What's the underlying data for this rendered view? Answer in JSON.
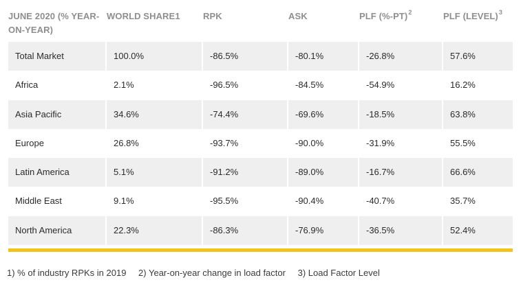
{
  "header": {
    "col0": "JUNE 2020 (% YEAR-ON-YEAR)",
    "col1": "WORLD SHARE1",
    "col2": "RPK",
    "col3": "ASK",
    "col4": "PLF (%-PT)",
    "col4_sup": "2",
    "col5": "PLF (LEVEL)",
    "col5_sup": "3"
  },
  "rows": [
    {
      "region": "Total Market",
      "share": "100.0%",
      "rpk": "-86.5%",
      "ask": "-80.1%",
      "plf_pt": "-26.8%",
      "plf_level": "57.6%"
    },
    {
      "region": "Africa",
      "share": "2.1%",
      "rpk": "-96.5%",
      "ask": "-84.5%",
      "plf_pt": "-54.9%",
      "plf_level": "16.2%"
    },
    {
      "region": "Asia Pacific",
      "share": "34.6%",
      "rpk": "-74.4%",
      "ask": "-69.6%",
      "plf_pt": "-18.5%",
      "plf_level": "63.8%"
    },
    {
      "region": "Europe",
      "share": "26.8%",
      "rpk": "-93.7%",
      "ask": "-90.0%",
      "plf_pt": "-31.9%",
      "plf_level": "55.5%"
    },
    {
      "region": "Latin America",
      "share": "5.1%",
      "rpk": "-91.2%",
      "ask": "-89.0%",
      "plf_pt": "-16.7%",
      "plf_level": "66.6%"
    },
    {
      "region": "Middle East",
      "share": "9.1%",
      "rpk": "-95.5%",
      "ask": "-90.4%",
      "plf_pt": "-40.7%",
      "plf_level": "35.7%"
    },
    {
      "region": "North America",
      "share": "22.3%",
      "rpk": "-86.3%",
      "ask": "-76.9%",
      "plf_pt": "-36.5%",
      "plf_level": "52.4%"
    }
  ],
  "footnotes": {
    "note1": "1) % of industry RPKs in 2019",
    "note2": "2) Year-on-year change in load factor",
    "note3": "3) Load Factor Level"
  },
  "colors": {
    "accent_bar": "#f2c318",
    "row_shade": "#efefef",
    "header_text": "#8e8e8e"
  }
}
